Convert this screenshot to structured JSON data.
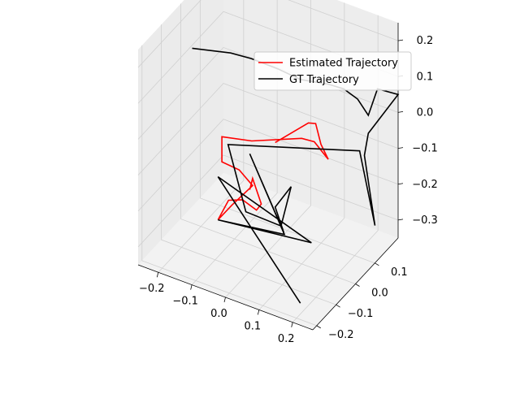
{
  "chart_data": {
    "type": "line",
    "projection": "3d",
    "axes": {
      "x": {
        "ticks": [
          -0.2,
          -0.1,
          0.0,
          0.1,
          0.2
        ],
        "tick_labels": [
          "−0.2",
          "−0.1",
          "0.0",
          "0.1",
          "0.2"
        ]
      },
      "y": {
        "ticks": [
          -0.2,
          -0.1,
          0.0,
          0.1
        ],
        "tick_labels": [
          "−0.2",
          "−0.1",
          "0.0",
          "0.1"
        ]
      },
      "z": {
        "ticks": [
          -0.3,
          -0.2,
          -0.1,
          0.0,
          0.1,
          0.2
        ],
        "tick_labels": [
          "−0.3",
          "−0.2",
          "−0.1",
          "0.0",
          "0.1",
          "0.2"
        ]
      }
    },
    "grid": true,
    "legend": {
      "position": "top-right"
    },
    "series": [
      {
        "name": "Estimated Trajectory",
        "color": "#ff0000",
        "points": [
          [
            0.05,
            -0.05,
            0.0
          ],
          [
            0.12,
            0.0,
            0.05
          ],
          [
            0.13,
            0.02,
            0.04
          ],
          [
            0.14,
            0.03,
            -0.02
          ],
          [
            0.15,
            0.05,
            -0.07
          ],
          [
            0.12,
            0.03,
            -0.02
          ],
          [
            0.1,
            0.0,
            0.0
          ],
          [
            -0.02,
            -0.05,
            -0.02
          ],
          [
            -0.08,
            -0.1,
            0.0
          ],
          [
            -0.08,
            -0.1,
            -0.07
          ],
          [
            -0.04,
            -0.08,
            -0.09
          ],
          [
            0.0,
            -0.08,
            -0.12
          ],
          [
            -0.05,
            -0.1,
            -0.18
          ],
          [
            -0.08,
            -0.12,
            -0.22
          ],
          [
            -0.06,
            -0.1,
            -0.17
          ],
          [
            -0.03,
            -0.08,
            -0.17
          ],
          [
            0.0,
            -0.06,
            -0.2
          ],
          [
            0.02,
            -0.07,
            -0.17
          ],
          [
            0.0,
            -0.08,
            -0.1
          ],
          [
            -0.02,
            -0.06,
            -0.15
          ]
        ]
      },
      {
        "name": "GT Trajectory",
        "color": "#000000",
        "points": [
          [
            -0.18,
            -0.08,
            0.2
          ],
          [
            -0.1,
            -0.02,
            0.18
          ],
          [
            -0.05,
            0.0,
            0.17
          ],
          [
            0.0,
            0.05,
            0.13
          ],
          [
            0.05,
            0.08,
            0.1
          ],
          [
            0.12,
            0.1,
            0.1
          ],
          [
            0.15,
            0.13,
            0.08
          ],
          [
            0.18,
            0.15,
            0.05
          ],
          [
            0.2,
            0.17,
            0.0
          ],
          [
            0.21,
            0.2,
            0.06
          ],
          [
            0.26,
            0.22,
            0.05
          ],
          [
            0.2,
            0.17,
            -0.05
          ],
          [
            0.2,
            0.15,
            -0.1
          ],
          [
            0.22,
            0.17,
            -0.3
          ],
          [
            0.18,
            0.16,
            -0.1
          ],
          [
            -0.05,
            -0.12,
            0.0
          ],
          [
            -0.02,
            -0.08,
            -0.2
          ],
          [
            0.05,
            -0.02,
            -0.25
          ],
          [
            0.08,
            -0.02,
            -0.13
          ],
          [
            0.05,
            -0.05,
            -0.18
          ],
          [
            0.07,
            -0.04,
            -0.25
          ],
          [
            -0.02,
            -0.06,
            -0.05
          ],
          [
            0.06,
            -0.02,
            -0.27
          ],
          [
            -0.08,
            -0.12,
            -0.22
          ],
          [
            0.1,
            0.05,
            -0.32
          ],
          [
            -0.08,
            -0.12,
            -0.1
          ],
          [
            0.2,
            -0.18,
            -0.32
          ]
        ]
      }
    ]
  }
}
